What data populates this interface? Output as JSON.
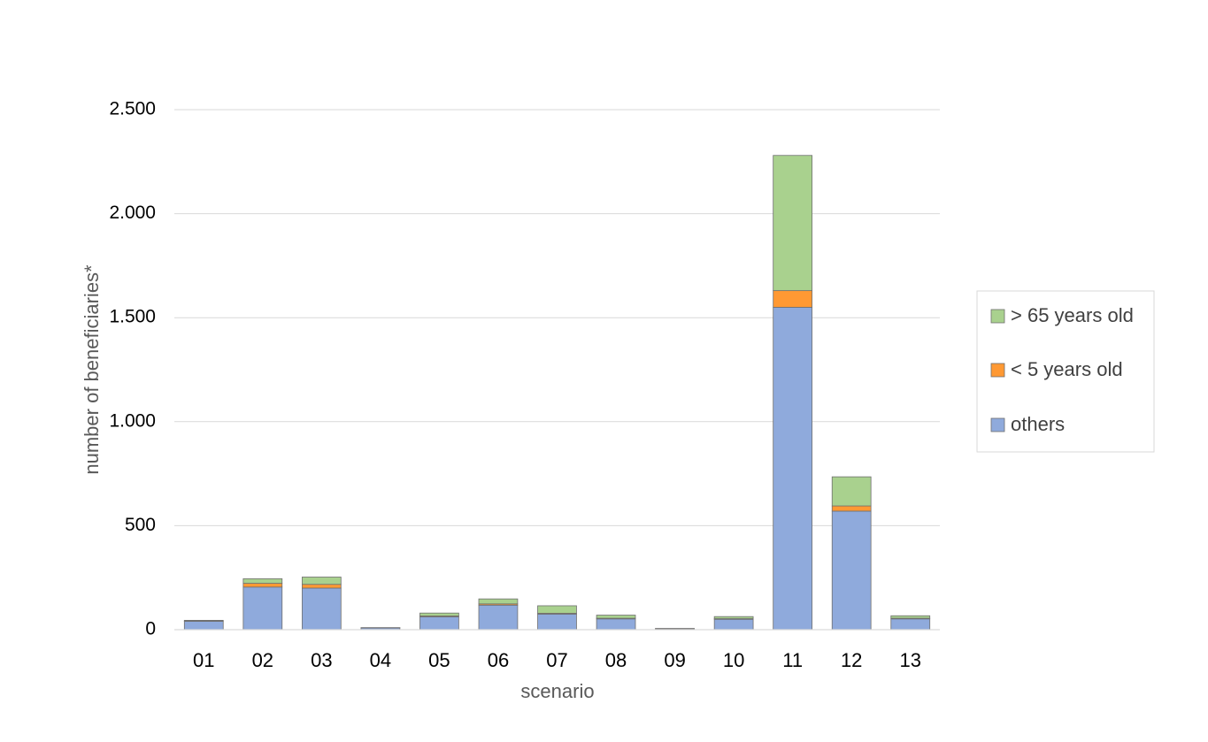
{
  "chart_data": {
    "type": "bar",
    "stacked": true,
    "xlabel": "scenario",
    "ylabel": "number of beneficiaries*",
    "ylim": [
      0,
      2500
    ],
    "yticks": [
      0,
      500,
      1000,
      1500,
      2000,
      2500
    ],
    "ytick_labels": [
      "0",
      "500",
      "1.000",
      "1.500",
      "2.000",
      "2.500"
    ],
    "grid": true,
    "legend_position": "right",
    "categories": [
      "01",
      "02",
      "03",
      "04",
      "05",
      "06",
      "07",
      "08",
      "09",
      "10",
      "11",
      "12",
      "13"
    ],
    "series": [
      {
        "name": "others",
        "color": "#8faadc",
        "values": [
          40,
          205,
          200,
          8,
          62,
          118,
          75,
          52,
          4,
          50,
          1550,
          570,
          52
        ]
      },
      {
        "name": "< 5 years old",
        "color": "#ff9933",
        "values": [
          2,
          18,
          18,
          1,
          4,
          6,
          4,
          3,
          1,
          3,
          80,
          25,
          3
        ]
      },
      {
        "name": "> 65 years old",
        "color": "#a9d18e",
        "values": [
          3,
          22,
          35,
          1,
          14,
          24,
          36,
          15,
          1,
          10,
          650,
          140,
          12
        ]
      }
    ],
    "legend_order": [
      "> 65 years old",
      "< 5 years old",
      "others"
    ]
  }
}
